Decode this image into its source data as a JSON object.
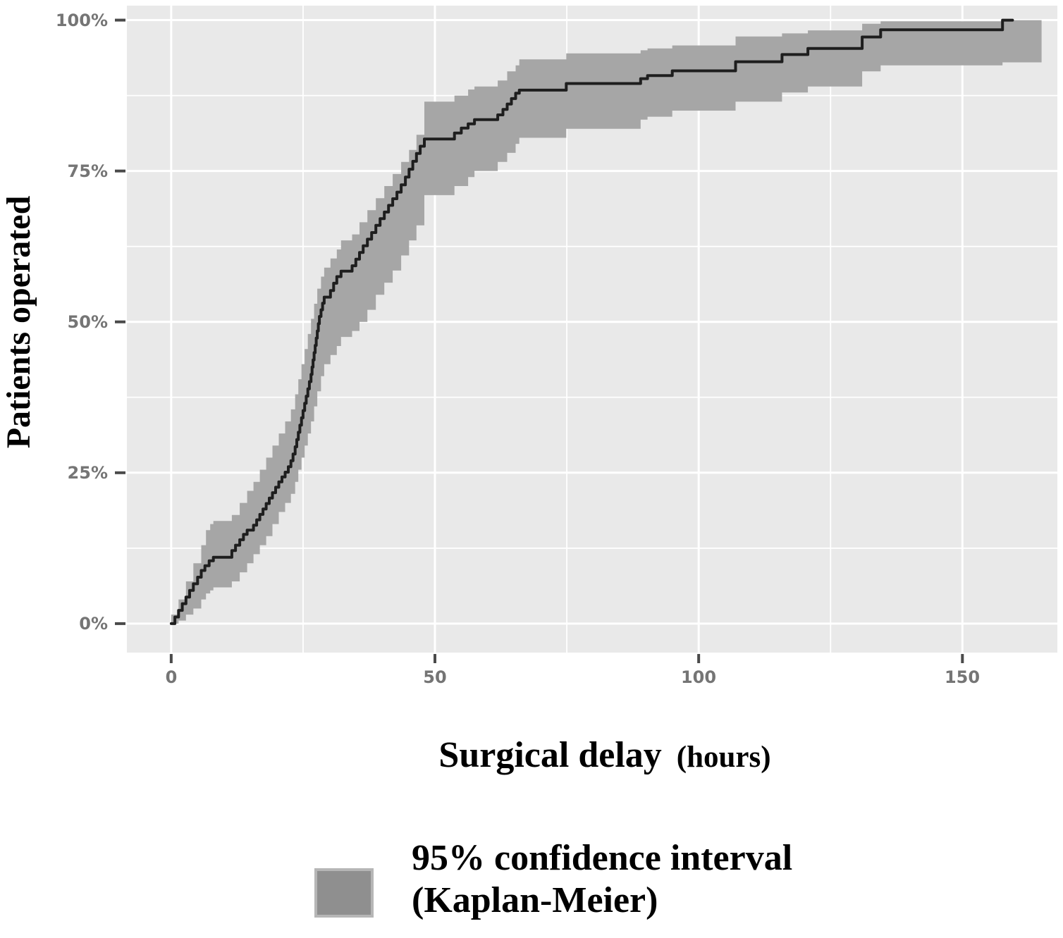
{
  "figure": {
    "y_axis_title": "Patients operated",
    "x_axis_title": "Surgical delay",
    "x_axis_title_unit": "(hours)",
    "legend": {
      "line1": "95% confidence interval",
      "line2": "(Kaplan-Meier)"
    },
    "colors": {
      "panel_background": "#e9e9e9",
      "gridline": "#ffffff",
      "ci_band": "#a6a6a6",
      "km_line": "#1e1e1e",
      "tick_label": "#757575",
      "tick_mark": "#4a4a4a",
      "legend_swatch_fill": "#8f8f8f",
      "legend_swatch_border": "#b6b6b6",
      "text": "#000000"
    }
  },
  "chart_data": {
    "type": "line",
    "subtype": "kaplan-meier-step",
    "title": "",
    "xlabel": "Surgical delay (hours)",
    "ylabel": "Patients operated",
    "grid": true,
    "legend_position": "bottom",
    "xlim": [
      -8.4,
      168
    ],
    "ylim": [
      -4.8,
      102.4
    ],
    "x_ticks": [
      {
        "value": 0,
        "label": "0"
      },
      {
        "value": 50,
        "label": "50"
      },
      {
        "value": 100,
        "label": "100"
      },
      {
        "value": 150,
        "label": "150"
      }
    ],
    "y_ticks": [
      {
        "value": 100,
        "label": "100%"
      },
      {
        "value": 75,
        "label": "75%"
      },
      {
        "value": 50,
        "label": "50%"
      },
      {
        "value": 25,
        "label": "25%"
      },
      {
        "value": 0,
        "label": "0%"
      }
    ],
    "x_minor": [
      25,
      75,
      125
    ],
    "y_minor": [
      12.5,
      37.5,
      62.5,
      87.5
    ],
    "series": [
      {
        "name": "Patients operated (Kaplan-Meier estimate)",
        "step": "after",
        "x": [
          0,
          0.7,
          1.4,
          2.1,
          2.8,
          3.5,
          4.2,
          5,
          5.7,
          6.4,
          7.2,
          8,
          11.5,
          12.2,
          13,
          13.7,
          14.4,
          15.6,
          16.2,
          16.8,
          17.4,
          18,
          18.6,
          19.2,
          19.8,
          20.4,
          21,
          21.6,
          22.2,
          22.7,
          23.1,
          23.5,
          23.8,
          24.1,
          24.4,
          24.7,
          25,
          25.3,
          25.6,
          25.9,
          26.2,
          26.5,
          26.7,
          26.9,
          27.1,
          27.3,
          27.5,
          27.7,
          27.9,
          28.1,
          28.4,
          28.7,
          29,
          30.2,
          30.8,
          31.4,
          32.2,
          34.3,
          35,
          35.7,
          36.4,
          37.2,
          38,
          38.8,
          39.6,
          40.4,
          41.2,
          42,
          42.8,
          43.6,
          44.4,
          45.1,
          45.8,
          46.5,
          47.2,
          48,
          53.7,
          55,
          56.3,
          57.5,
          61.9,
          62.9,
          63.7,
          64.5,
          65.3,
          66,
          74.9,
          89,
          90.3,
          95,
          107,
          115.8,
          120.7,
          131,
          134.5,
          157.6,
          159.5
        ],
        "y": [
          0,
          1.1,
          2.2,
          3.3,
          4.4,
          5.5,
          6.6,
          7.7,
          8.8,
          9.6,
          10.4,
          11,
          12.1,
          13,
          13.9,
          14.8,
          15.5,
          16.3,
          17.2,
          18.1,
          19,
          19.9,
          20.8,
          21.7,
          22.6,
          23.5,
          24.3,
          25.1,
          26,
          27,
          28.1,
          29.3,
          30.5,
          31.7,
          32.9,
          34.1,
          35.3,
          36.5,
          37.7,
          38.9,
          40.1,
          41.3,
          42.5,
          43.7,
          44.9,
          46.1,
          47.3,
          48.5,
          49.7,
          50.9,
          52,
          53.1,
          54.1,
          55.2,
          56.4,
          57.5,
          58.4,
          59.3,
          60.4,
          61.5,
          62.6,
          63.7,
          64.8,
          66,
          67.1,
          68.2,
          69.3,
          70.4,
          71.5,
          72.7,
          74,
          75.3,
          76.6,
          77.9,
          79.1,
          80.3,
          81.3,
          82.1,
          82.8,
          83.5,
          84.3,
          85.2,
          86.1,
          87,
          87.9,
          88.4,
          89.5,
          90.3,
          90.8,
          91.6,
          93.1,
          94.3,
          95.3,
          97.2,
          98.4,
          100,
          100
        ]
      }
    ],
    "ci": {
      "name": "95% confidence interval (Kaplan-Meier)",
      "x": [
        0,
        1.4,
        2.8,
        4.2,
        5.7,
        6.6,
        7.4,
        8,
        11.5,
        13,
        14.4,
        15.6,
        16.8,
        18,
        19.2,
        20.4,
        21.6,
        22.7,
        23.5,
        24.1,
        24.7,
        25.3,
        25.9,
        26.5,
        27.1,
        27.7,
        28.4,
        29,
        30.2,
        31.4,
        32.2,
        34.3,
        35.7,
        37.2,
        38.8,
        40.4,
        42,
        43.6,
        45.1,
        46.5,
        48,
        53.7,
        56.3,
        57.5,
        61.9,
        63.7,
        65.3,
        66,
        74.9,
        89,
        90.3,
        95,
        107,
        115.8,
        120.7,
        131,
        134.5,
        157.6,
        165
      ],
      "lower": [
        0,
        0.5,
        1.5,
        2.5,
        4,
        5,
        5.5,
        6,
        7,
        8.5,
        10,
        11.5,
        13,
        14.5,
        16.5,
        18.5,
        20,
        21.5,
        23.5,
        25.5,
        27.5,
        29.5,
        31.5,
        33.5,
        36,
        38.5,
        41,
        43,
        44.5,
        46,
        47.5,
        48.5,
        50,
        52,
        54.5,
        56.5,
        58.5,
        61,
        63.5,
        66,
        71,
        72.5,
        74,
        75,
        76.5,
        78,
        79.5,
        80.5,
        82,
        83.5,
        84,
        85,
        86.5,
        88,
        89,
        91.5,
        92.5,
        93,
        93
      ],
      "upper": [
        1.5,
        4,
        7,
        10,
        13,
        15.5,
        16.5,
        17,
        18,
        20,
        22,
        23.5,
        25.5,
        27.5,
        29.5,
        31.5,
        33.5,
        35.5,
        38,
        40.5,
        43,
        45.5,
        48,
        50.5,
        53,
        55.5,
        57.5,
        59,
        60.5,
        62,
        63.5,
        64.5,
        66.5,
        68.5,
        70.5,
        72.5,
        74.5,
        76.5,
        78.5,
        81,
        86.5,
        87.5,
        88.5,
        89,
        90,
        91.5,
        92.5,
        93.5,
        94.5,
        95,
        95.3,
        95.8,
        97.3,
        97.8,
        98.3,
        99.4,
        99.8,
        100,
        100
      ]
    }
  }
}
